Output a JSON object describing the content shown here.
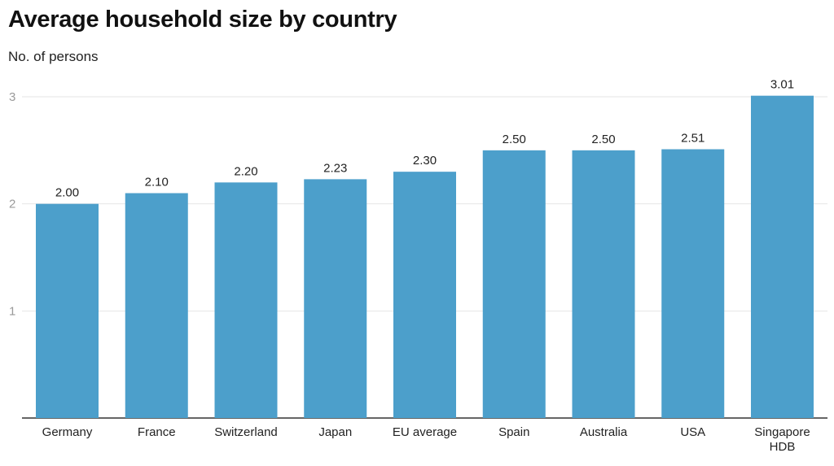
{
  "chart_data": {
    "type": "bar",
    "title": "Average household size by country",
    "subtitle": "No. of persons",
    "categories": [
      "Germany",
      "France",
      "Switzerland",
      "Japan",
      "EU average",
      "Spain",
      "Australia",
      "USA",
      "Singapore HDB"
    ],
    "values": [
      2.0,
      2.1,
      2.2,
      2.23,
      2.3,
      2.5,
      2.5,
      2.51,
      3.01
    ],
    "value_labels": [
      "2.00",
      "2.10",
      "2.20",
      "2.23",
      "2.30",
      "2.50",
      "2.50",
      "2.51",
      "3.01"
    ],
    "y_ticks": [
      1,
      2,
      3
    ],
    "ylim": [
      0,
      3
    ],
    "grid": true,
    "legend": "none",
    "bar_color": "#4c9fcb",
    "grid_color": "#e6e6e6",
    "axis_color": "#333333"
  }
}
